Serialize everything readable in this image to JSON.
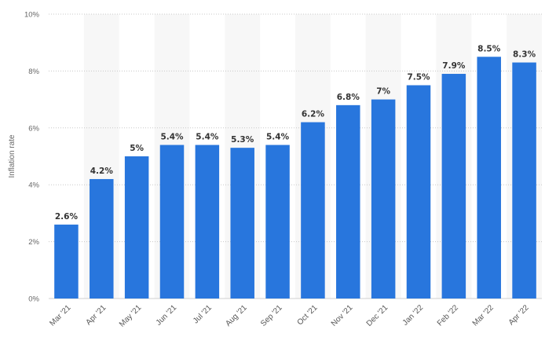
{
  "chart_data": {
    "type": "bar",
    "categories": [
      "Mar '21",
      "Apr '21",
      "May '21",
      "Jun '21",
      "Jul '21",
      "Aug '21",
      "Sep '21",
      "Oct '21",
      "Nov '21",
      "Dec '21",
      "Jan '22",
      "Feb '22",
      "Mar '22",
      "Apr '22"
    ],
    "values": [
      2.6,
      4.2,
      5,
      5.4,
      5.4,
      5.3,
      5.4,
      6.2,
      6.8,
      7,
      7.5,
      7.9,
      8.5,
      8.3
    ],
    "data_labels": [
      "2.6%",
      "4.2%",
      "5%",
      "5.4%",
      "5.4%",
      "5.3%",
      "5.4%",
      "6.2%",
      "6.8%",
      "7%",
      "7.5%",
      "7.9%",
      "8.5%",
      "8.3%"
    ],
    "title": "",
    "xlabel": "",
    "ylabel": "Inflation rate",
    "ylim": [
      0,
      10
    ],
    "yticks": [
      0,
      2,
      4,
      6,
      8,
      10
    ],
    "ytick_labels": [
      "0%",
      "2%",
      "4%",
      "6%",
      "8%",
      "10%"
    ],
    "grid": "horizontal dotted",
    "legend": "none",
    "bar_color": "#2876dd",
    "band_color": "#f7f7f7"
  }
}
